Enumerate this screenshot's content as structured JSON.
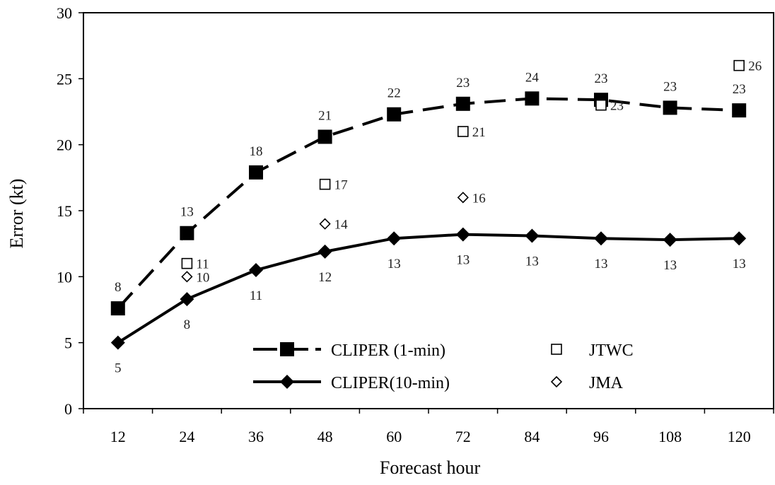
{
  "chart_data": {
    "type": "line",
    "title": "",
    "xlabel": "Forecast hour",
    "ylabel": "Error (kt)",
    "categories": [
      12,
      24,
      36,
      48,
      60,
      72,
      84,
      96,
      108,
      120
    ],
    "ylim": [
      0,
      30
    ],
    "yticks": [
      0,
      5,
      10,
      15,
      20,
      25,
      30
    ],
    "grid": false,
    "legend_position": "bottom-center",
    "series": [
      {
        "name": "CLIPER (1-min)",
        "style": "dashed-line-filled-square",
        "x": [
          12,
          24,
          36,
          48,
          60,
          72,
          84,
          96,
          108,
          120
        ],
        "values": [
          7.6,
          13.3,
          17.9,
          20.6,
          22.3,
          23.1,
          23.5,
          23.4,
          22.8,
          22.6
        ],
        "labels": [
          "8",
          "13",
          "18",
          "21",
          "22",
          "23",
          "24",
          "23",
          "23",
          "23"
        ],
        "label_position": "above"
      },
      {
        "name": "CLIPER(10-min)",
        "style": "solid-line-filled-diamond",
        "x": [
          12,
          24,
          36,
          48,
          60,
          72,
          84,
          96,
          108,
          120
        ],
        "values": [
          5.0,
          8.3,
          10.5,
          11.9,
          12.9,
          13.2,
          13.1,
          12.9,
          12.8,
          12.9
        ],
        "labels": [
          "5",
          "8",
          "11",
          "12",
          "13",
          "13",
          "13",
          "13",
          "13",
          "13"
        ],
        "label_position": "below"
      },
      {
        "name": "JTWC",
        "style": "open-square",
        "x": [
          24,
          48,
          72,
          96,
          120
        ],
        "values": [
          11,
          17,
          21,
          23,
          26
        ],
        "labels": [
          "11",
          "17",
          "21",
          "23",
          "26"
        ],
        "label_position": "right"
      },
      {
        "name": "JMA",
        "style": "open-diamond",
        "x": [
          24,
          48,
          72
        ],
        "values": [
          10,
          14,
          16
        ],
        "labels": [
          "10",
          "14",
          "16"
        ],
        "label_position": "right"
      }
    ]
  }
}
